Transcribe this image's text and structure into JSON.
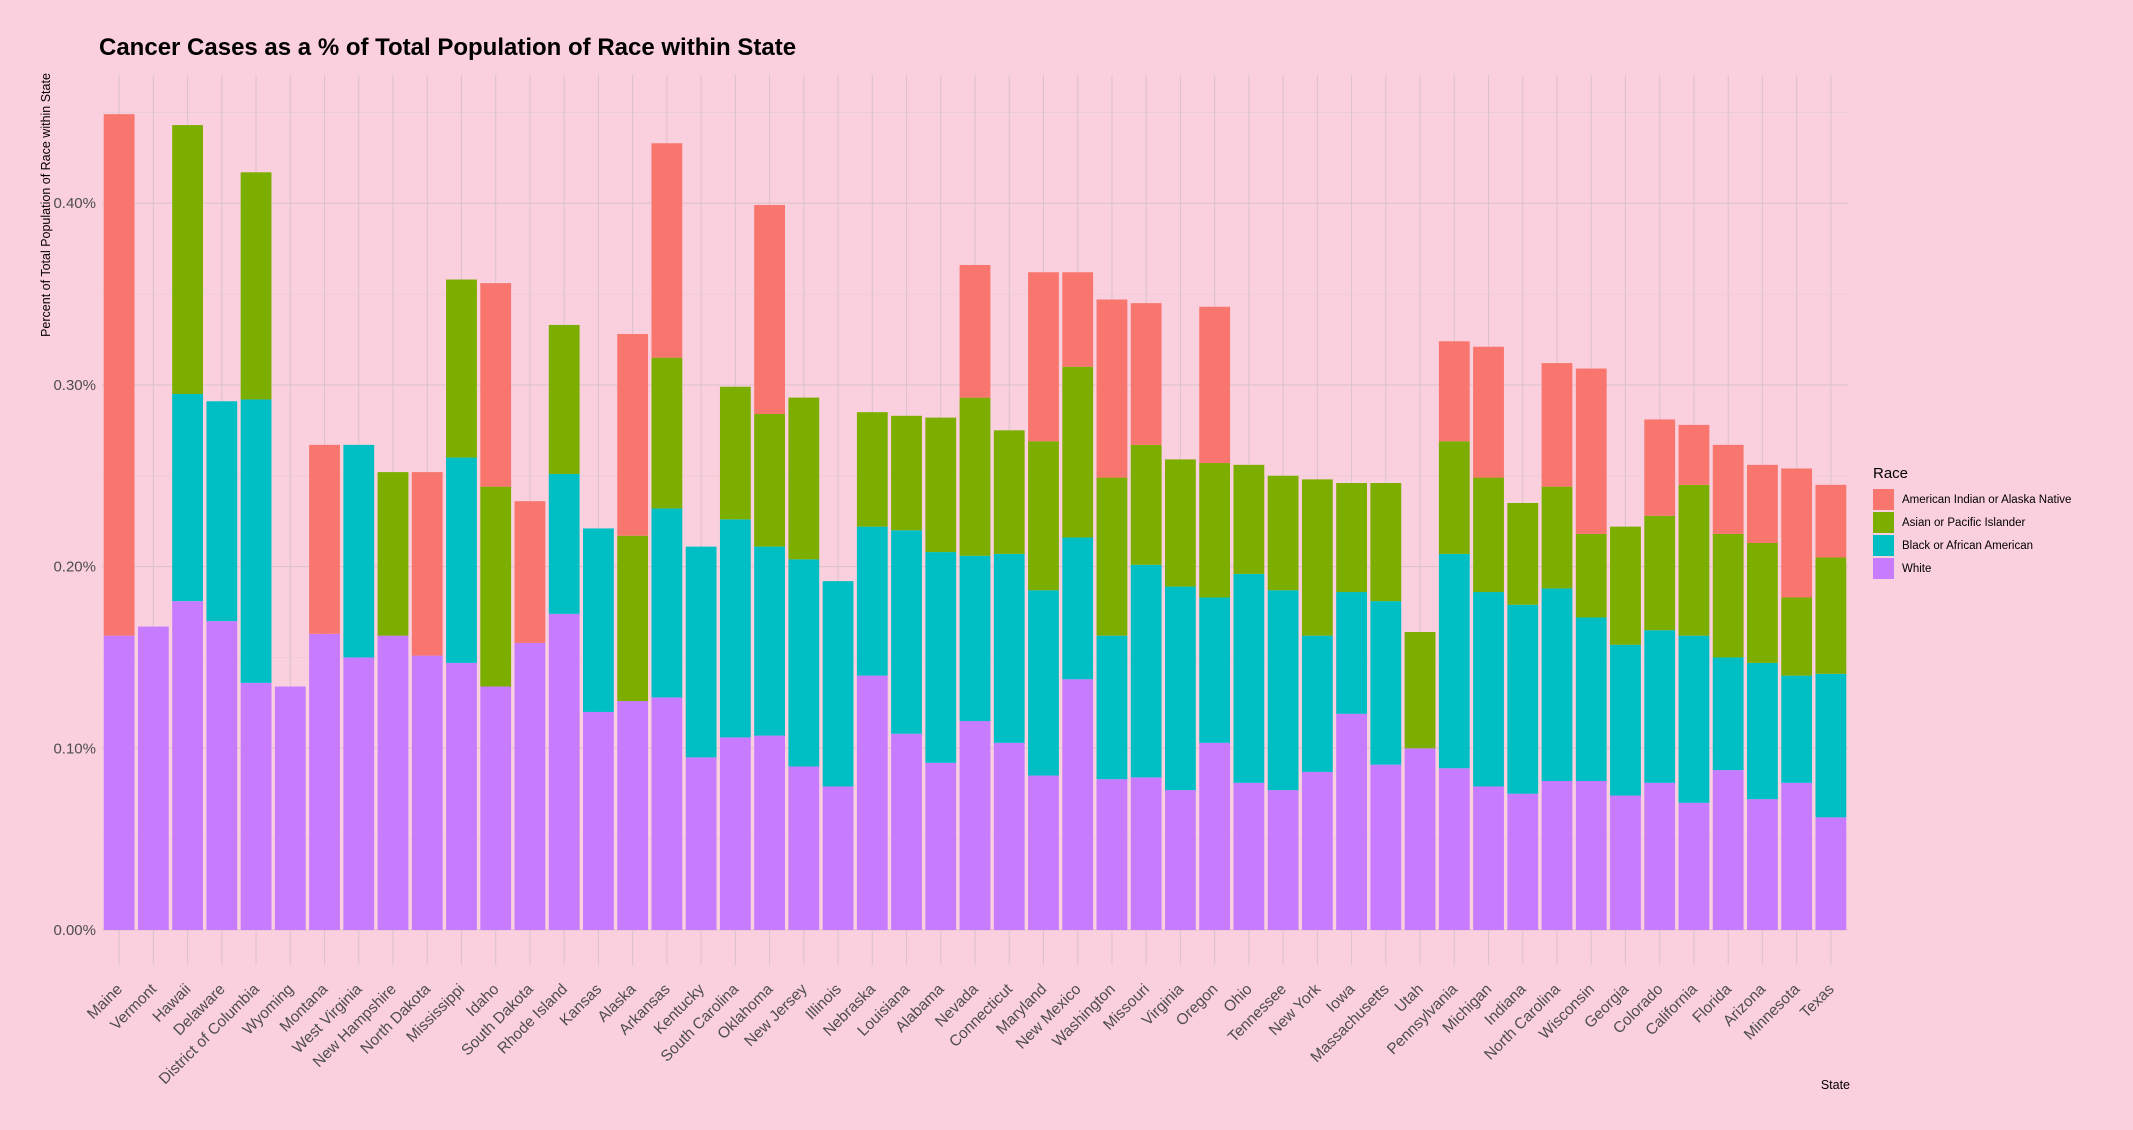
{
  "chart_data": {
    "type": "bar",
    "stacked": true,
    "title": "Cancer Cases as a % of Total Population of Race within State",
    "xlabel": "State",
    "ylabel": "Percent of Total Population of Race within State",
    "ylim": [
      0,
      0.47
    ],
    "yticks": [
      0,
      0.1,
      0.2,
      0.3,
      0.4
    ],
    "ytick_labels": [
      "0.00%",
      "0.10%",
      "0.20%",
      "0.30%",
      "0.40%"
    ],
    "grid": true,
    "legend": {
      "title": "Race",
      "position": "right"
    },
    "categories": [
      "Maine",
      "Vermont",
      "Hawaii",
      "Delaware",
      "District of Columbia",
      "Wyoming",
      "Montana",
      "West Virginia",
      "New Hampshire",
      "North Dakota",
      "Mississippi",
      "Idaho",
      "South Dakota",
      "Rhode Island",
      "Kansas",
      "Alaska",
      "Arkansas",
      "Kentucky",
      "South Carolina",
      "Oklahoma",
      "New Jersey",
      "Illinois",
      "Nebraska",
      "Louisiana",
      "Alabama",
      "Nevada",
      "Connecticut",
      "Maryland",
      "New Mexico",
      "Washington",
      "Missouri",
      "Virginia",
      "Oregon",
      "Ohio",
      "Tennessee",
      "New York",
      "Iowa",
      "Massachusetts",
      "Utah",
      "Pennsylvania",
      "Michigan",
      "Indiana",
      "North Carolina",
      "Wisconsin",
      "Georgia",
      "Colorado",
      "California",
      "Florida",
      "Arizona",
      "Minnesota",
      "Texas"
    ],
    "series": [
      {
        "name": "White",
        "color": "#C77CFF",
        "values": [
          0.162,
          0.167,
          0.181,
          0.17,
          0.136,
          0.134,
          0.163,
          0.15,
          0.162,
          0.151,
          0.147,
          0.134,
          0.158,
          0.174,
          0.12,
          0.126,
          0.128,
          0.095,
          0.106,
          0.107,
          0.09,
          0.079,
          0.14,
          0.108,
          0.092,
          0.115,
          0.103,
          0.085,
          0.138,
          0.083,
          0.084,
          0.077,
          0.103,
          0.081,
          0.077,
          0.087,
          0.119,
          0.091,
          0.1,
          0.089,
          0.079,
          0.075,
          0.082,
          0.082,
          0.074,
          0.081,
          0.07,
          0.088,
          0.072,
          0.081,
          0.062
        ]
      },
      {
        "name": "Black or African American",
        "color": "#00BFC4",
        "values": [
          0,
          0,
          0.114,
          0.121,
          0.156,
          0,
          0,
          0.117,
          0,
          0,
          0.113,
          0,
          0,
          0.077,
          0.101,
          0,
          0.104,
          0.116,
          0.12,
          0.104,
          0.114,
          0.113,
          0.082,
          0.112,
          0.116,
          0.091,
          0.104,
          0.102,
          0.078,
          0.079,
          0.117,
          0.112,
          0.08,
          0.115,
          0.11,
          0.075,
          0.067,
          0.09,
          0,
          0.118,
          0.107,
          0.104,
          0.106,
          0.09,
          0.083,
          0.084,
          0.092,
          0.062,
          0.075,
          0.059,
          0.079
        ]
      },
      {
        "name": "Asian or Pacific Islander",
        "color": "#7CAE00",
        "values": [
          0,
          0,
          0.148,
          0,
          0.125,
          0,
          0,
          0,
          0.09,
          0,
          0.098,
          0.11,
          0,
          0.082,
          0,
          0.091,
          0.083,
          0,
          0.073,
          0.073,
          0.089,
          0,
          0.063,
          0.063,
          0.074,
          0.087,
          0.068,
          0.082,
          0.094,
          0.087,
          0.066,
          0.07,
          0.074,
          0.06,
          0.063,
          0.086,
          0.06,
          0.065,
          0.064,
          0.062,
          0.063,
          0.056,
          0.056,
          0.046,
          0.065,
          0.063,
          0.083,
          0.068,
          0.066,
          0.043,
          0.064
        ]
      },
      {
        "name": "American Indian or Alaska Native",
        "color": "#F8766D",
        "values": [
          0.287,
          0,
          0,
          0,
          0,
          0,
          0.104,
          0,
          0,
          0.101,
          0,
          0.112,
          0.078,
          0,
          0,
          0.111,
          0.118,
          0,
          0,
          0.115,
          0,
          0,
          0,
          0,
          0,
          0.073,
          0,
          0.093,
          0.052,
          0.098,
          0.078,
          0,
          0.086,
          0,
          0,
          0,
          0,
          0,
          0,
          0.055,
          0.072,
          0,
          0.068,
          0.091,
          0,
          0.053,
          0.033,
          0.049,
          0.043,
          0.071,
          0.04
        ]
      }
    ]
  }
}
